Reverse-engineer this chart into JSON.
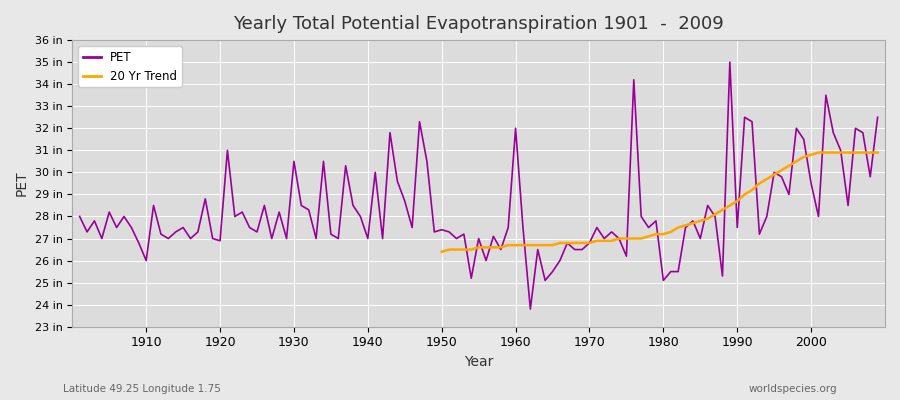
{
  "title": "Yearly Total Potential Evapotranspiration 1901  -  2009",
  "xlabel": "Year",
  "ylabel": "PET",
  "subtitle_left": "Latitude 49.25 Longitude 1.75",
  "subtitle_right": "worldspecies.org",
  "pet_label": "PET",
  "trend_label": "20 Yr Trend",
  "pet_color": "#990099",
  "trend_color": "#FFA500",
  "bg_color": "#E8E8E8",
  "plot_bg_color": "#DCDCDC",
  "grid_color": "#FFFFFF",
  "ylim_min": 23,
  "ylim_max": 36,
  "years": [
    1901,
    1902,
    1903,
    1904,
    1905,
    1906,
    1907,
    1908,
    1909,
    1910,
    1911,
    1912,
    1913,
    1914,
    1915,
    1916,
    1917,
    1918,
    1919,
    1920,
    1921,
    1922,
    1923,
    1924,
    1925,
    1926,
    1927,
    1928,
    1929,
    1930,
    1931,
    1932,
    1933,
    1934,
    1935,
    1936,
    1937,
    1938,
    1939,
    1940,
    1941,
    1942,
    1943,
    1944,
    1945,
    1946,
    1947,
    1948,
    1949,
    1950,
    1951,
    1952,
    1953,
    1954,
    1955,
    1956,
    1957,
    1958,
    1959,
    1960,
    1961,
    1962,
    1963,
    1964,
    1965,
    1966,
    1967,
    1968,
    1969,
    1970,
    1971,
    1972,
    1973,
    1974,
    1975,
    1976,
    1977,
    1978,
    1979,
    1980,
    1981,
    1982,
    1983,
    1984,
    1985,
    1986,
    1987,
    1988,
    1989,
    1990,
    1991,
    1992,
    1993,
    1994,
    1995,
    1996,
    1997,
    1998,
    1999,
    2000,
    2001,
    2002,
    2003,
    2004,
    2005,
    2006,
    2007,
    2008,
    2009
  ],
  "pet_values": [
    28.0,
    27.3,
    27.8,
    27.0,
    28.2,
    27.5,
    28.0,
    27.5,
    26.8,
    26.0,
    28.5,
    27.2,
    27.0,
    27.3,
    27.5,
    27.0,
    27.3,
    28.8,
    27.0,
    26.9,
    31.0,
    28.0,
    28.2,
    27.5,
    27.3,
    28.5,
    27.0,
    28.2,
    27.0,
    30.5,
    28.5,
    28.3,
    27.0,
    30.5,
    27.2,
    27.0,
    30.3,
    28.5,
    28.0,
    27.0,
    30.0,
    27.0,
    31.8,
    29.6,
    28.7,
    27.5,
    32.3,
    30.5,
    27.3,
    27.4,
    27.3,
    27.0,
    27.2,
    25.2,
    27.0,
    26.0,
    27.1,
    26.5,
    27.5,
    32.0,
    27.5,
    23.8,
    26.5,
    25.1,
    25.5,
    26.0,
    26.8,
    26.5,
    26.5,
    26.8,
    27.5,
    27.0,
    27.3,
    27.0,
    26.2,
    34.2,
    28.0,
    27.5,
    27.8,
    25.1,
    25.5,
    25.5,
    27.5,
    27.8,
    27.0,
    28.5,
    28.0,
    25.3,
    35.0,
    27.5,
    32.5,
    32.3,
    27.2,
    28.0,
    30.0,
    29.8,
    29.0,
    32.0,
    31.5,
    29.5,
    28.0,
    33.5,
    31.8,
    31.0,
    28.5,
    32.0,
    31.8,
    29.8,
    32.5
  ],
  "trend_years": [
    1950,
    1951,
    1952,
    1953,
    1954,
    1955,
    1956,
    1957,
    1958,
    1959,
    1960,
    1961,
    1962,
    1963,
    1964,
    1965,
    1966,
    1967,
    1968,
    1969,
    1970,
    1971,
    1972,
    1973,
    1974,
    1975,
    1976,
    1977,
    1978,
    1979,
    1980,
    1981,
    1982,
    1983,
    1984,
    1985,
    1986,
    1987,
    1988,
    1989,
    1990,
    1991,
    1992,
    1993,
    1994,
    1995,
    1996,
    1997,
    1998,
    1999,
    2000,
    2001,
    2002,
    2003,
    2004,
    2005,
    2006,
    2007,
    2008,
    2009
  ],
  "trend_values": [
    26.4,
    26.5,
    26.5,
    26.5,
    26.5,
    26.6,
    26.6,
    26.6,
    26.6,
    26.7,
    26.7,
    26.7,
    26.7,
    26.7,
    26.7,
    26.7,
    26.8,
    26.8,
    26.8,
    26.8,
    26.8,
    26.9,
    26.9,
    26.9,
    27.0,
    27.0,
    27.0,
    27.0,
    27.1,
    27.2,
    27.2,
    27.3,
    27.5,
    27.6,
    27.7,
    27.8,
    27.9,
    28.1,
    28.3,
    28.5,
    28.7,
    29.0,
    29.2,
    29.5,
    29.7,
    29.9,
    30.1,
    30.3,
    30.5,
    30.7,
    30.8,
    30.9,
    30.9,
    30.9,
    30.9,
    30.9,
    30.9,
    30.9,
    30.9,
    30.9
  ]
}
